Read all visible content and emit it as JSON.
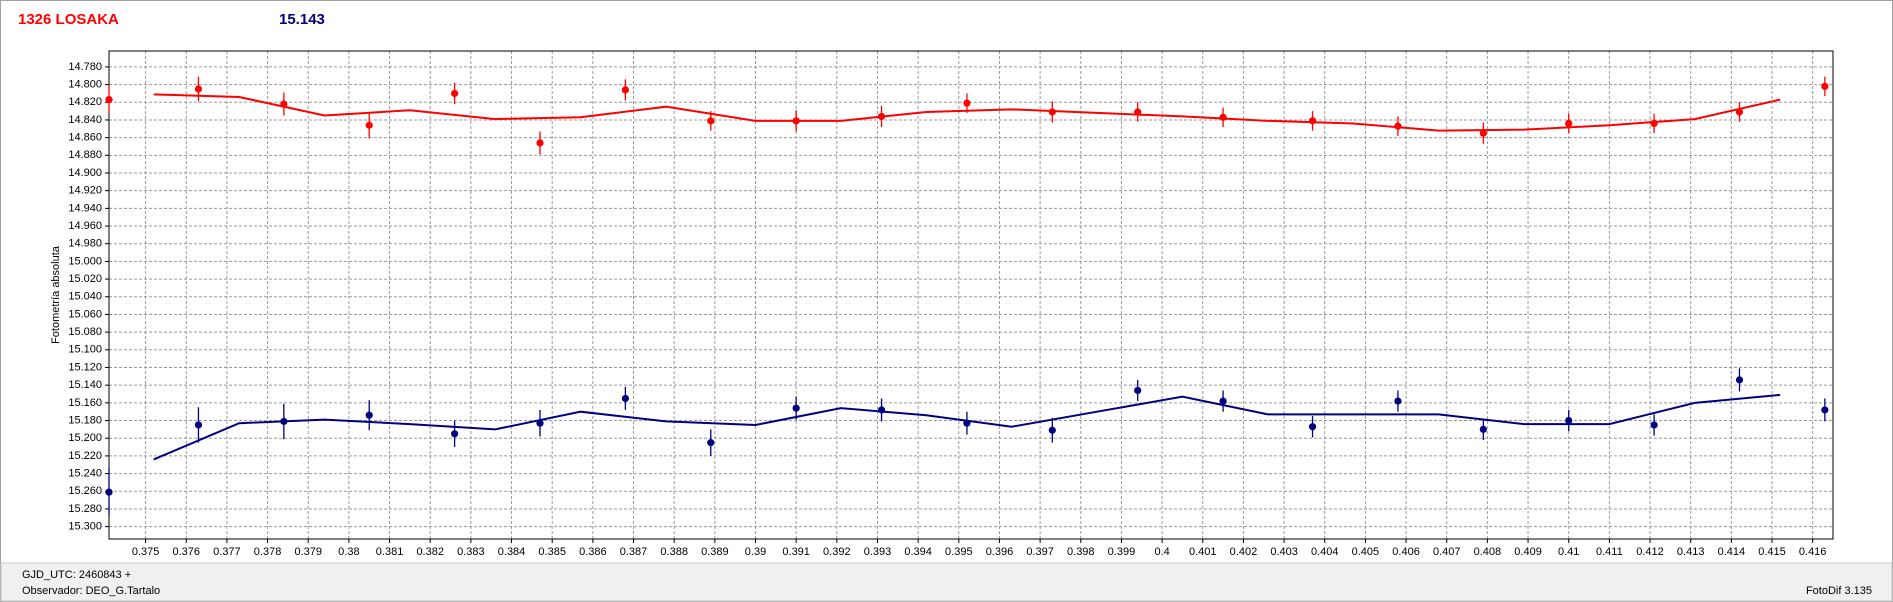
{
  "chart_data": {
    "type": "errorbar",
    "y_label": "Fotometría absoluta",
    "invert_y": true,
    "grid": true,
    "x": [
      0.3741,
      0.3763,
      0.3784,
      0.3805,
      0.3826,
      0.3847,
      0.3868,
      0.3889,
      0.391,
      0.3931,
      0.3952,
      0.3973,
      0.3994,
      0.4015,
      0.4037,
      0.4058,
      0.4079,
      0.41,
      0.4121,
      0.4142,
      0.4163
    ],
    "fit_x": [
      0.3752,
      0.3773,
      0.3794,
      0.3815,
      0.3836,
      0.3857,
      0.3878,
      0.39,
      0.3921,
      0.3942,
      0.3963,
      0.3984,
      0.4005,
      0.4026,
      0.4047,
      0.4068,
      0.4089,
      0.411,
      0.4131,
      0.4152
    ],
    "series": [
      {
        "name": "1326 LOSAKA",
        "color": "#ff0000",
        "values": [
          14.817,
          14.805,
          14.822,
          14.846,
          14.81,
          14.866,
          14.806,
          14.841,
          14.841,
          14.836,
          14.821,
          14.831,
          14.831,
          14.837,
          14.841,
          14.847,
          14.855,
          14.844,
          14.844,
          14.831,
          14.802
        ],
        "errors": [
          0.016,
          0.014,
          0.013,
          0.015,
          0.012,
          0.013,
          0.012,
          0.011,
          0.012,
          0.012,
          0.011,
          0.012,
          0.011,
          0.011,
          0.011,
          0.011,
          0.012,
          0.011,
          0.011,
          0.011,
          0.011
        ],
        "fit": [
          14.811,
          14.814,
          14.835,
          14.829,
          14.839,
          14.837,
          14.825,
          14.841,
          14.841,
          14.831,
          14.828,
          14.832,
          14.836,
          14.841,
          14.844,
          14.852,
          14.851,
          14.846,
          14.839,
          14.817
        ]
      },
      {
        "name": "15.143",
        "color": "#000080",
        "values": [
          15.261,
          15.185,
          15.181,
          15.174,
          15.195,
          15.183,
          15.155,
          15.205,
          15.166,
          15.168,
          15.183,
          15.191,
          15.146,
          15.158,
          15.187,
          15.158,
          15.19,
          15.18,
          15.185,
          15.134,
          15.168
        ],
        "errors": [
          0.027,
          0.02,
          0.02,
          0.017,
          0.015,
          0.015,
          0.013,
          0.015,
          0.013,
          0.013,
          0.013,
          0.014,
          0.012,
          0.012,
          0.012,
          0.012,
          0.012,
          0.012,
          0.012,
          0.013,
          0.013
        ],
        "fit": [
          15.224,
          15.183,
          15.179,
          15.184,
          15.19,
          15.17,
          15.181,
          15.185,
          15.166,
          15.174,
          15.187,
          15.17,
          15.153,
          15.173,
          15.173,
          15.173,
          15.184,
          15.184,
          15.16,
          15.151
        ]
      }
    ],
    "xlim": [
      0.3741,
      0.4165
    ],
    "ylim": [
      14.762,
      15.314
    ],
    "xticks": [
      0.375,
      0.376,
      0.377,
      0.378,
      0.379,
      0.38,
      0.381,
      0.382,
      0.383,
      0.384,
      0.385,
      0.386,
      0.387,
      0.388,
      0.389,
      0.39,
      0.391,
      0.392,
      0.393,
      0.394,
      0.395,
      0.396,
      0.397,
      0.398,
      0.399,
      0.4,
      0.401,
      0.402,
      0.403,
      0.404,
      0.405,
      0.406,
      0.407,
      0.408,
      0.409,
      0.41,
      0.411,
      0.412,
      0.413,
      0.414,
      0.415,
      0.416
    ],
    "yticks": [
      {
        "value": 14.78,
        "label": "14.780"
      },
      {
        "value": 14.8,
        "label": "14.800"
      },
      {
        "value": 14.82,
        "label": "14.820"
      },
      {
        "value": 14.84,
        "label": "14.840"
      },
      {
        "value": 14.86,
        "label": "14.860"
      },
      {
        "value": 14.88,
        "label": "14.880"
      },
      {
        "value": 14.9,
        "label": "14.900"
      },
      {
        "value": 14.92,
        "label": "14.920"
      },
      {
        "value": 14.94,
        "label": "14.940"
      },
      {
        "value": 14.96,
        "label": "14.960"
      },
      {
        "value": 14.98,
        "label": "14.980"
      },
      {
        "value": 15.0,
        "label": "15.000"
      },
      {
        "value": 15.02,
        "label": "15.020"
      },
      {
        "value": 15.04,
        "label": "15.040"
      },
      {
        "value": 15.06,
        "label": "15.060"
      },
      {
        "value": 15.08,
        "label": "15.080"
      },
      {
        "value": 15.1,
        "label": "15.100"
      },
      {
        "value": 15.12,
        "label": "15.120"
      },
      {
        "value": 15.14,
        "label": "15.140"
      },
      {
        "value": 15.16,
        "label": "15.160"
      },
      {
        "value": 15.18,
        "label": "15.180"
      },
      {
        "value": 15.2,
        "label": "15.200"
      },
      {
        "value": 15.22,
        "label": "15.220"
      },
      {
        "value": 15.24,
        "label": "15.240"
      },
      {
        "value": 15.26,
        "label": "15.260"
      },
      {
        "value": 15.28,
        "label": "15.280"
      },
      {
        "value": 15.3,
        "label": "15.300"
      }
    ]
  },
  "footer": {
    "time_base": "GJD_UTC: 2460843 +",
    "observer": "Observador: DEO_G.Tartalo",
    "software": "FotoDif 3.135"
  }
}
